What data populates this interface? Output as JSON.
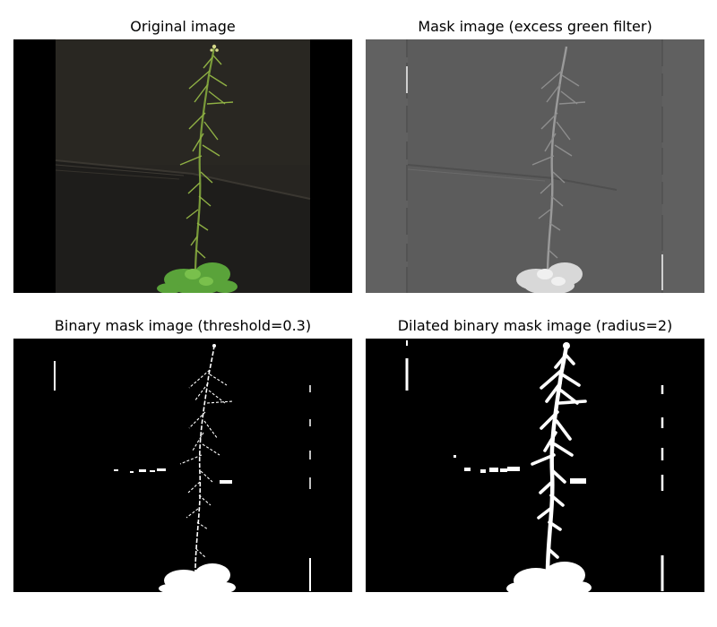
{
  "panels": [
    {
      "title": "Original image",
      "kind": "photograph"
    },
    {
      "title": "Mask image (excess green filter)",
      "kind": "grayscale-mask"
    },
    {
      "title": "Binary mask image (threshold=0.3)",
      "kind": "binary-mask"
    },
    {
      "title": "Dilated binary mask image (radius=2)",
      "kind": "dilated-binary-mask"
    }
  ],
  "colors": {
    "background": "#ffffff",
    "photo_backdrop": "#272521",
    "photo_side_bands": "#000000",
    "plant_stem": "#7a9b3a",
    "rosette_leaves": "#5aa33a",
    "mask_gray": "#5c5c5c",
    "mask_foreground": "#ffffff",
    "binary_background": "#000000"
  }
}
